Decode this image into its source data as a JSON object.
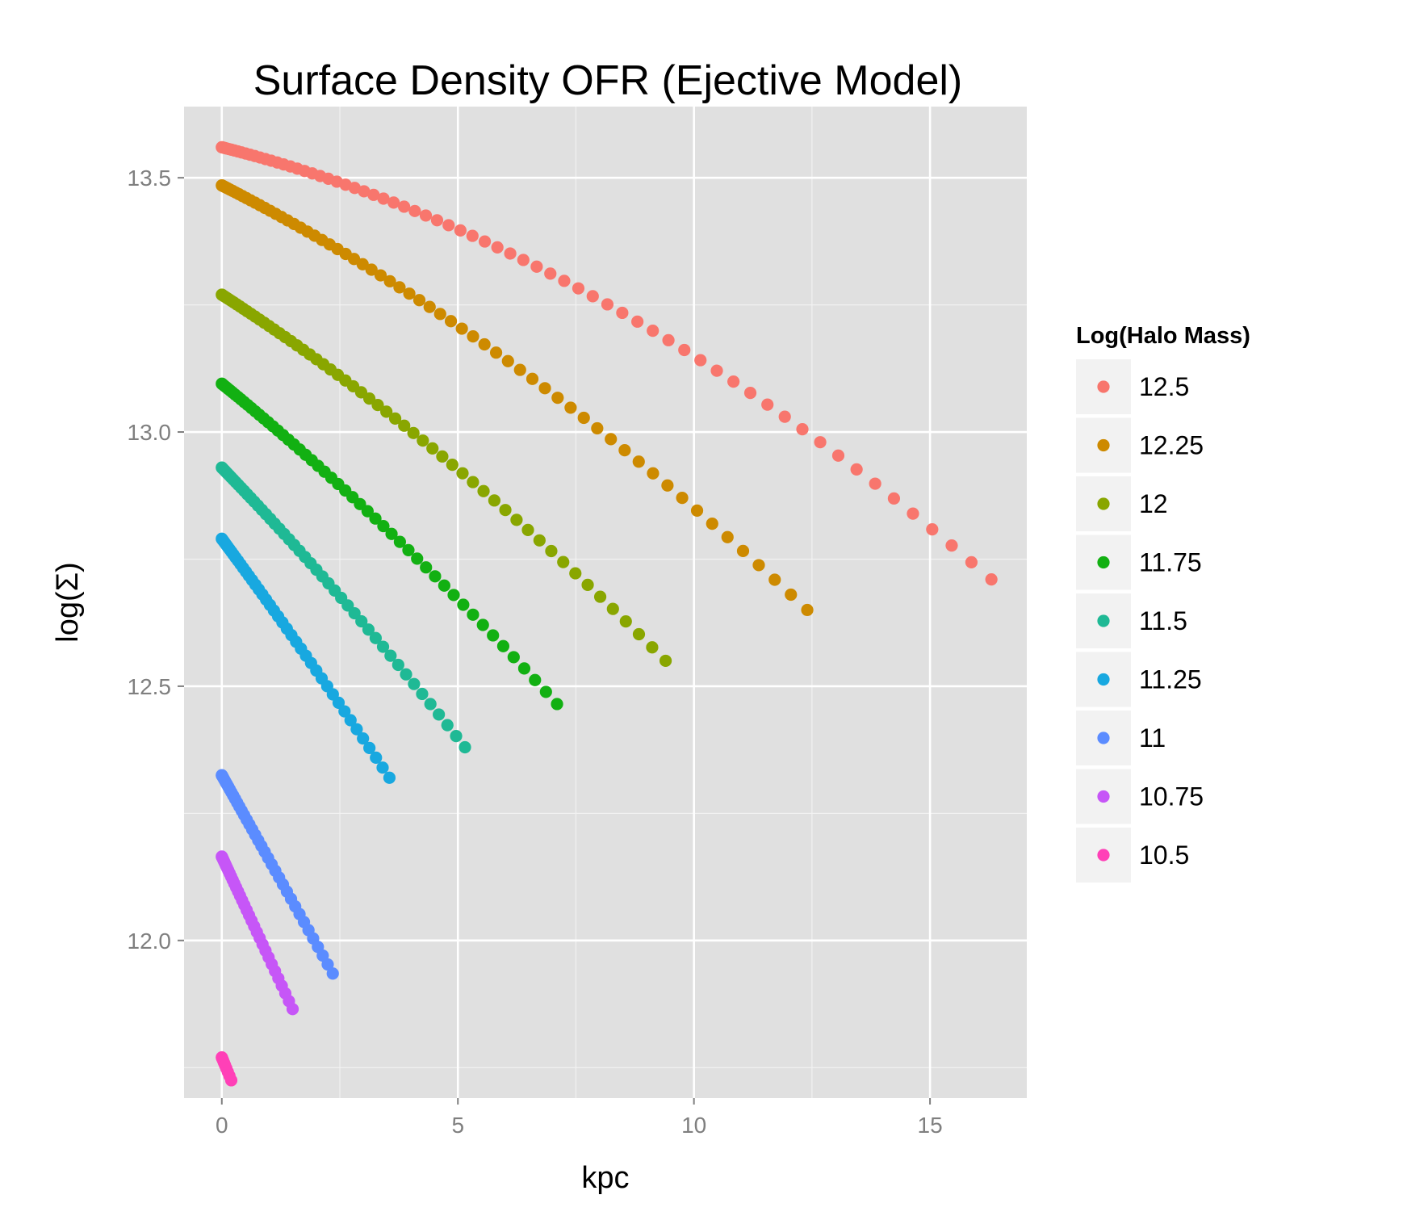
{
  "chart_data": {
    "type": "scatter",
    "title": "Surface Density OFR (Ejective Model)",
    "xlabel": "kpc",
    "ylabel": "log(Σ)",
    "xlim": [
      -0.8,
      17.05
    ],
    "ylim": [
      11.69,
      13.64
    ],
    "x_ticks": [
      0,
      5,
      10,
      15
    ],
    "x_tick_labels": [
      "0",
      "5",
      "10",
      "15"
    ],
    "y_ticks": [
      12.0,
      12.5,
      13.0,
      13.5
    ],
    "y_tick_labels": [
      "12.0",
      "12.5",
      "13.0",
      "13.5"
    ],
    "grid": true,
    "legend_title": "Log(Halo Mass)",
    "legend_position": "right",
    "panel_background": "#e0e0e0",
    "series": [
      {
        "name": "12.5",
        "color": "#f8766d",
        "x_max": 16.3,
        "y_start": 13.56,
        "y_end": 12.71,
        "curvature": 0.55,
        "n_points": 70
      },
      {
        "name": "12.25",
        "color": "#cd8a00",
        "x_max": 12.4,
        "y_start": 13.485,
        "y_end": 12.65,
        "curvature": 0.3,
        "n_points": 65
      },
      {
        "name": "12",
        "color": "#89a600",
        "x_max": 9.4,
        "y_start": 13.27,
        "y_end": 12.55,
        "curvature": 0.22,
        "n_points": 60
      },
      {
        "name": "11.75",
        "color": "#12b012",
        "x_max": 7.1,
        "y_start": 13.095,
        "y_end": 12.465,
        "curvature": 0.15,
        "n_points": 55
      },
      {
        "name": "11.5",
        "color": "#1fb995",
        "x_max": 5.15,
        "y_start": 12.93,
        "y_end": 12.38,
        "curvature": 0.1,
        "n_points": 50
      },
      {
        "name": "11.25",
        "color": "#18a8e0",
        "x_max": 3.55,
        "y_start": 12.79,
        "y_end": 12.32,
        "curvature": 0.05,
        "n_points": 45
      },
      {
        "name": "11",
        "color": "#5b8cff",
        "x_max": 2.35,
        "y_start": 12.325,
        "y_end": 11.935,
        "curvature": 0.0,
        "n_points": 40
      },
      {
        "name": "10.75",
        "color": "#c656f7",
        "x_max": 1.5,
        "y_start": 12.165,
        "y_end": 11.865,
        "curvature": 0.0,
        "n_points": 35
      },
      {
        "name": "10.5",
        "color": "#ff40b7",
        "x_max": 0.2,
        "y_start": 11.77,
        "y_end": 11.725,
        "curvature": 0.0,
        "n_points": 10
      }
    ]
  }
}
